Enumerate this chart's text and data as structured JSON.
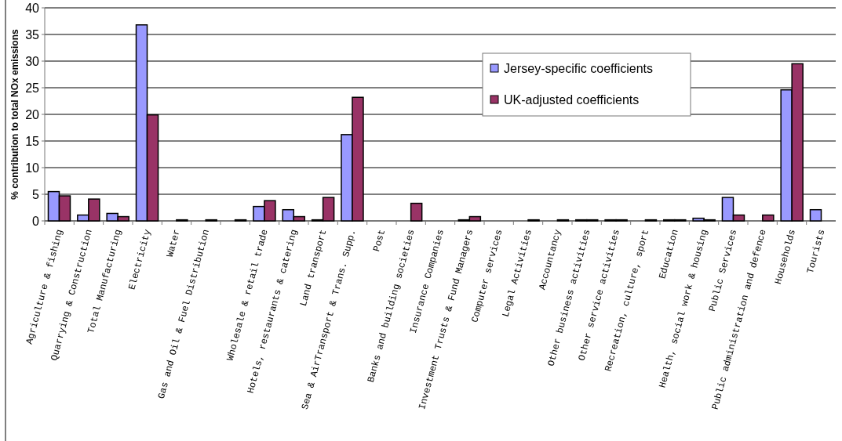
{
  "chart_data": {
    "type": "bar",
    "ylabel": "% contribution to total NOx emissions",
    "categories": [
      "Agriculture & fishing",
      "Quarrying & Construction",
      "Total Manufacturing",
      "Electricity",
      "Water",
      "Gas and Oil & Fuel Distribution",
      null,
      "Wholesale & retail trade",
      "Hotels, restaurants & catering",
      "Land transport",
      "Sea & AirTransport & Trans. Supp.",
      "Post",
      "Banks and building societies",
      "Insurance Companies",
      "Investment Trusts & Fund Managers",
      "Computer services",
      "Legal Activities",
      "Accountancy",
      "Other business activities",
      "Other service activities",
      "Recreation, culture, sport",
      "Education",
      "Health, social work & housing",
      "Public Services",
      "Public administration and defence",
      "Households",
      "Tourists"
    ],
    "series": [
      {
        "name": "Jersey-specific coefficients",
        "color": "#9999ff",
        "values": [
          5.5,
          1.1,
          1.4,
          36.8,
          0,
          0,
          0,
          2.7,
          2.1,
          0.2,
          16.2,
          0,
          0,
          0,
          0.2,
          0,
          0,
          0,
          0.2,
          0.2,
          0,
          0.2,
          0.5,
          4.4,
          0,
          24.6,
          2.1
        ]
      },
      {
        "name": "UK-adjusted coefficients",
        "color": "#993366",
        "values": [
          4.7,
          4.1,
          0.8,
          19.9,
          0.2,
          0.2,
          0.2,
          3.8,
          0.8,
          4.4,
          23.2,
          0,
          3.3,
          0,
          0.8,
          0,
          0.2,
          0.2,
          0.2,
          0.2,
          0.2,
          0.2,
          0.2,
          1.1,
          1.1,
          29.5,
          0
        ]
      }
    ],
    "ylim": [
      0,
      40
    ],
    "yticks": [
      0,
      5,
      10,
      15,
      20,
      25,
      30,
      35,
      40
    ],
    "grid": "y",
    "legend": "top right"
  }
}
